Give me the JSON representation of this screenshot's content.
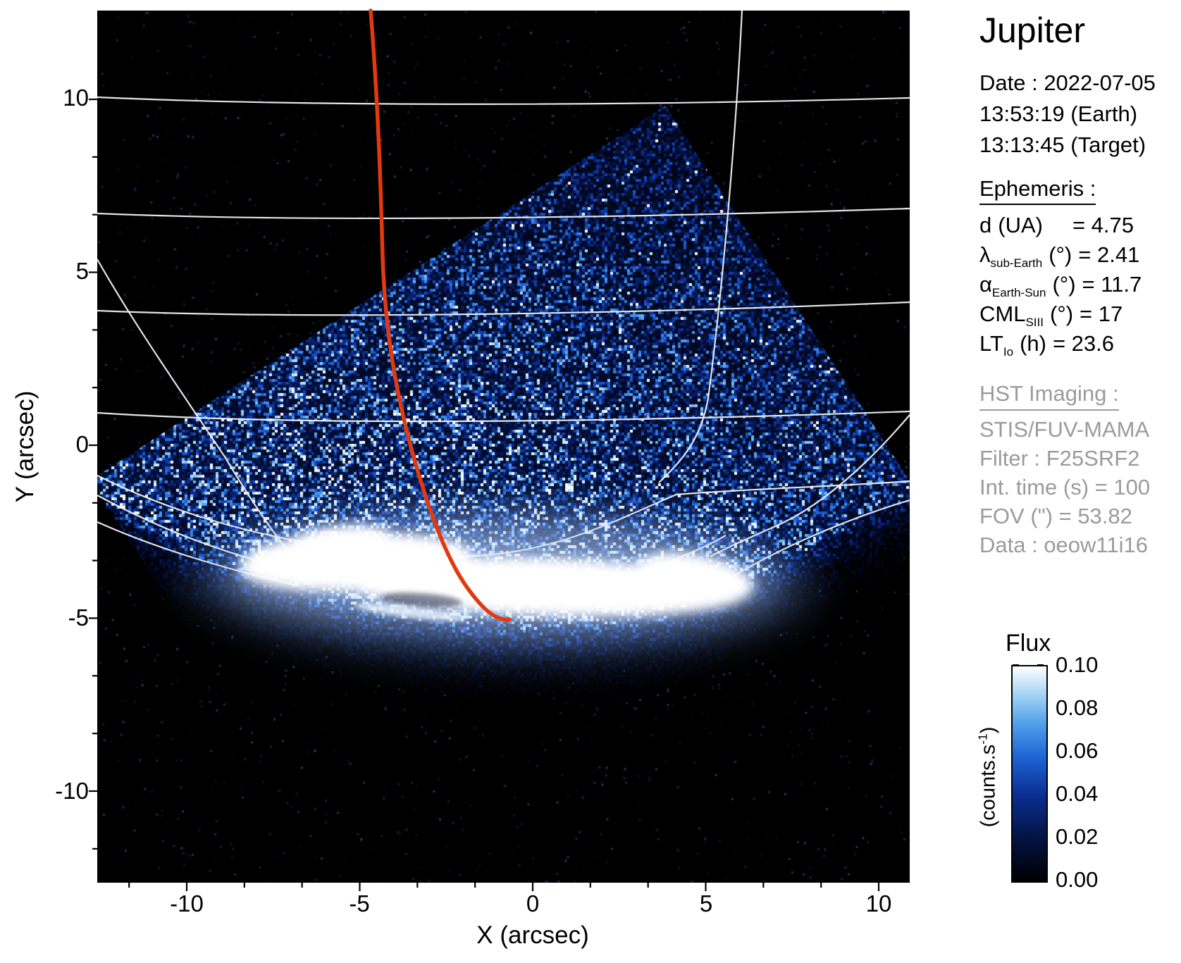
{
  "title": "Jupiter",
  "observation": {
    "date": "Date : 2022-07-05",
    "time_earth": "13:53:19 (Earth)",
    "time_target": "13:13:45 (Target)"
  },
  "ephemeris": {
    "heading": "Ephemeris :",
    "rows": [
      {
        "symbol": "d",
        "sub": "",
        "unit": "(UA)",
        "value": "= 4.75"
      },
      {
        "symbol": "λ",
        "sub": "sub-Earth",
        "unit": "(°)",
        "value": "= 2.41"
      },
      {
        "symbol": "α",
        "sub": "Earth-Sun",
        "unit": "(°)",
        "value": "= 11.7"
      },
      {
        "symbol": "CML",
        "sub": "SIII",
        "unit": "(°)",
        "value": "= 17"
      },
      {
        "symbol": "LT",
        "sub": "Io",
        "unit": "(h)",
        "value": "= 23.6"
      }
    ]
  },
  "hst": {
    "heading": "HST Imaging :",
    "lines": [
      "STIS/FUV-MAMA",
      "Filter : F25SRF2",
      "Int. time (s) = 100",
      "FOV (\") = 53.82",
      "Data : oeow11i16"
    ]
  },
  "axes": {
    "xlabel": "X (arcsec)",
    "ylabel": "Y (arcsec)",
    "x_ticks": [
      "-10",
      "-5",
      "0",
      "5",
      "10"
    ],
    "y_ticks": [
      "10",
      "5",
      "0",
      "-5",
      "-10"
    ]
  },
  "colorbar": {
    "title": "Flux",
    "unit_main": "(counts.s",
    "unit_sup": "-1",
    "unit_close": ")",
    "ticks": [
      "0.10",
      "0.08",
      "0.06",
      "0.04",
      "0.02",
      "0.00"
    ]
  },
  "colors": {
    "track_red": "#e2390f",
    "graticule_white": "#f5f5f5",
    "panel_gray": "#9b9b9b",
    "background_black": "#000000"
  },
  "chart_data": {
    "type": "heatmap",
    "title": "Jupiter",
    "xlabel": "X (arcsec)",
    "ylabel": "Y (arcsec)",
    "x_ticks": [
      -10,
      -5,
      0,
      5,
      10
    ],
    "y_ticks": [
      10,
      5,
      0,
      -5,
      -10
    ],
    "x_range": [
      -12.6,
      10.9
    ],
    "y_range": [
      -12.6,
      12.6
    ],
    "grid": false,
    "colorbar": {
      "label": "Flux (counts.s^-1)",
      "min": 0.0,
      "max": 0.1,
      "ticks": [
        0.0,
        0.02,
        0.04,
        0.06,
        0.08,
        0.1
      ],
      "colormap": "black-blue-white"
    },
    "features": {
      "detector_fov_square_arcsec": [
        [
          3.8,
          9.8
        ],
        [
          14.7,
          -6.8
        ],
        [
          -2.0,
          -17.6
        ],
        [
          -12.8,
          -1.0
        ]
      ],
      "fov_note": "rotated-square STIS field filled with blue photon noise, clipped by plot edges, fading below the planetary limb",
      "aurora_band_arcsec": {
        "x_extent": [
          -7.8,
          6.1
        ],
        "y_center": -4.0,
        "note": "saturated white auroral oval band"
      },
      "satellite_track_arcsec": [
        [
          -4.7,
          12.5
        ],
        [
          -4.3,
          5.4
        ],
        [
          -3.0,
          -1.8
        ],
        [
          -1.4,
          -4.7
        ],
        [
          -0.7,
          -5.0
        ]
      ],
      "graticule_note": "white planetocentric lat/lon grid; nearly horizontal latitude lines bunching toward limb bowl, meridians converging at limb"
    }
  }
}
